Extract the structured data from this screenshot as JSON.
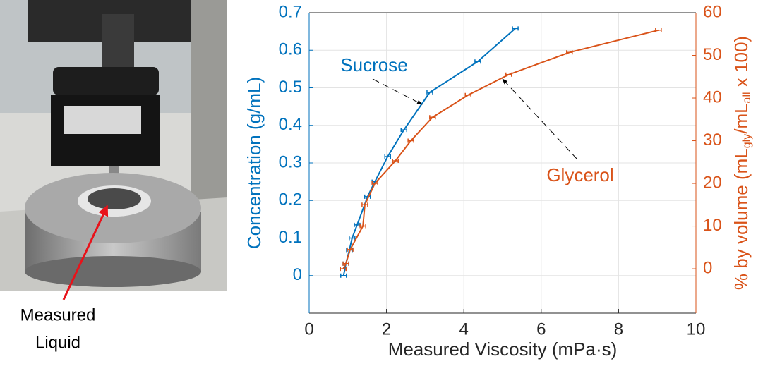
{
  "photo": {
    "label": [
      "Measured",
      "Liquid"
    ]
  },
  "chart_data": {
    "type": "line",
    "xlabel": "Measured Viscosity (mPa·s)",
    "ylabel": "Concentration (g/mL)",
    "y2label": [
      "% by volume (mL",
      "gly",
      "/mL",
      "all",
      " x 100)"
    ],
    "xlim": [
      0,
      10
    ],
    "xticks": [
      0,
      2,
      4,
      6,
      8,
      10
    ],
    "ylim": [
      -0.1,
      0.7
    ],
    "yticks": [
      0,
      0.1,
      0.2,
      0.3,
      0.4,
      0.5,
      0.6,
      0.7
    ],
    "y2lim": [
      -10.4,
      60
    ],
    "y2ticks": [
      0,
      10,
      20,
      30,
      40,
      50,
      60
    ],
    "grid": true,
    "series": [
      {
        "name": "Sucrose",
        "color": "#0072BD",
        "x": [
          0.89,
          0.95,
          1.04,
          1.11,
          1.24,
          1.51,
          1.7,
          2.03,
          2.45,
          3.12,
          4.36,
          5.33
        ],
        "values": [
          0,
          0.032,
          0.068,
          0.1,
          0.135,
          0.21,
          0.25,
          0.317,
          0.388,
          0.488,
          0.57,
          0.658
        ]
      },
      {
        "name": "Glycerol",
        "color": "#D95319",
        "axis": "y2",
        "x": [
          0.88,
          0.95,
          1.06,
          1.39,
          1.44,
          1.7,
          2.23,
          2.63,
          3.19,
          4.11,
          5.16,
          6.73,
          9.03
        ],
        "values": [
          0,
          1.2,
          4.5,
          10,
          15,
          20,
          25.3,
          30,
          35.5,
          40.7,
          45.5,
          50.7,
          55.9
        ]
      }
    ]
  }
}
